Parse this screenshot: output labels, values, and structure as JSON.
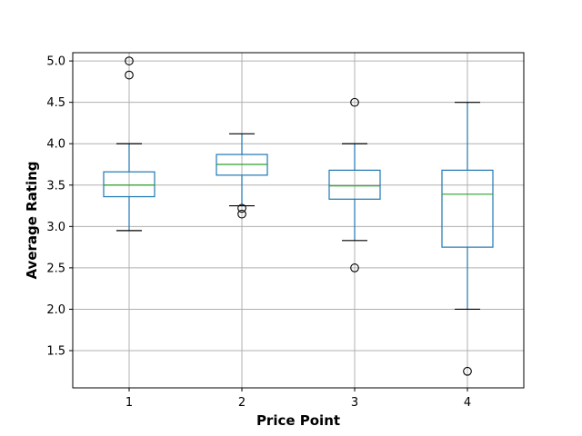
{
  "chart_data": {
    "type": "box",
    "title": "",
    "xlabel": "Price Point",
    "ylabel": "Average Rating",
    "ylim": [
      1.05,
      5.1
    ],
    "yticks": [
      "1.5",
      "2.0",
      "2.5",
      "3.0",
      "3.5",
      "4.0",
      "4.5",
      "5.0"
    ],
    "grid": true,
    "categories": [
      "1",
      "2",
      "3",
      "4"
    ],
    "boxes": [
      {
        "category": "1",
        "whisker_low": 2.95,
        "q1": 3.36,
        "median": 3.5,
        "q3": 3.66,
        "whisker_high": 4.0,
        "outliers": [
          5.0,
          4.83
        ]
      },
      {
        "category": "2",
        "whisker_low": 3.25,
        "q1": 3.62,
        "median": 3.75,
        "q3": 3.87,
        "whisker_high": 4.12,
        "outliers": [
          3.22,
          3.15
        ]
      },
      {
        "category": "3",
        "whisker_low": 2.83,
        "q1": 3.33,
        "median": 3.49,
        "q3": 3.68,
        "whisker_high": 4.0,
        "outliers": [
          4.5,
          2.5
        ]
      },
      {
        "category": "4",
        "whisker_low": 2.0,
        "q1": 2.75,
        "median": 3.39,
        "q3": 3.68,
        "whisker_high": 4.5,
        "outliers": [
          1.25
        ]
      }
    ],
    "colors": {
      "box": "#1f77b4",
      "median": "#2ca02c",
      "whisker_cap": "#000000",
      "outlier": "#000000",
      "grid": "#b0b0b0"
    }
  }
}
